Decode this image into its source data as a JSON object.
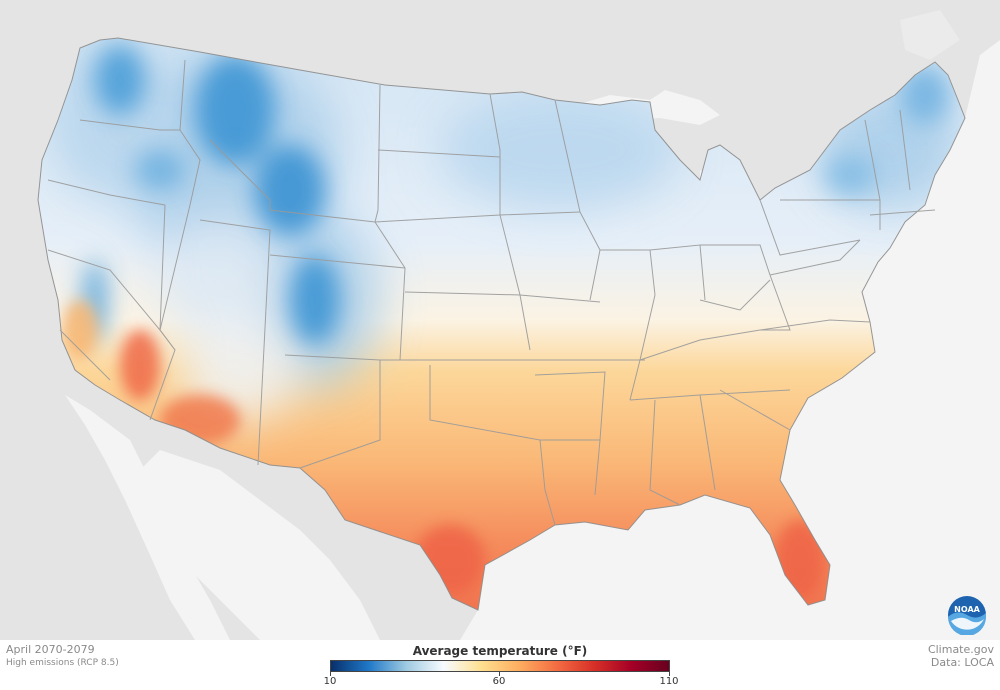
{
  "footer": {
    "period": "April 2070-2079",
    "scenario": "High emissions (RCP 8.5)",
    "source_site": "Climate.gov",
    "source_data": "Data: LOCA"
  },
  "legend": {
    "title": "Average temperature (°F)",
    "min_label": "10",
    "mid_label": "60",
    "max_label": "110",
    "min": 10,
    "mid": 60,
    "max": 110,
    "colors": [
      "#08306b",
      "#1f78c8",
      "#9ecae1",
      "#f7fbff",
      "#fee090",
      "#fdae61",
      "#f46d43",
      "#d73027",
      "#a50026",
      "#67001f"
    ]
  },
  "logo": {
    "text": "NOAA",
    "icon": "noaa-logo-icon"
  },
  "colors": {
    "land_base": "#ffe3a8",
    "ocean": "#f4f4f4",
    "background_land": "#e2e2e2",
    "border": "#9a9a9a"
  }
}
